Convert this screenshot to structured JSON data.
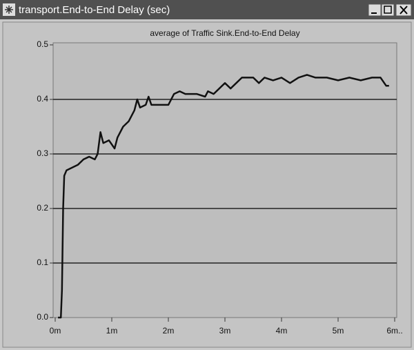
{
  "window": {
    "title": "transport.End-to-End Delay (sec)"
  },
  "chart_data": {
    "type": "line",
    "title": "average of Traffic Sink.End-to-End Delay",
    "x": [
      0.05,
      0.1,
      0.12,
      0.14,
      0.16,
      0.2,
      0.3,
      0.4,
      0.5,
      0.6,
      0.7,
      0.75,
      0.8,
      0.85,
      0.95,
      1.05,
      1.1,
      1.2,
      1.3,
      1.4,
      1.45,
      1.5,
      1.6,
      1.65,
      1.7,
      1.8,
      1.9,
      2.0,
      2.1,
      2.2,
      2.3,
      2.5,
      2.65,
      2.7,
      2.8,
      2.9,
      3.0,
      3.1,
      3.2,
      3.3,
      3.5,
      3.6,
      3.7,
      3.85,
      4.0,
      4.15,
      4.3,
      4.45,
      4.6,
      4.8,
      5.0,
      5.2,
      5.4,
      5.6,
      5.75,
      5.85,
      5.9
    ],
    "values": [
      0,
      0,
      0.05,
      0.2,
      0.26,
      0.27,
      0.275,
      0.28,
      0.29,
      0.295,
      0.29,
      0.3,
      0.34,
      0.32,
      0.325,
      0.31,
      0.33,
      0.35,
      0.36,
      0.38,
      0.4,
      0.385,
      0.39,
      0.405,
      0.39,
      0.39,
      0.39,
      0.39,
      0.41,
      0.415,
      0.41,
      0.41,
      0.405,
      0.415,
      0.41,
      0.42,
      0.43,
      0.42,
      0.43,
      0.44,
      0.44,
      0.43,
      0.44,
      0.435,
      0.44,
      0.43,
      0.44,
      0.445,
      0.44,
      0.44,
      0.435,
      0.44,
      0.435,
      0.44,
      0.44,
      0.425,
      0.425
    ],
    "color": "#111111",
    "xlim": [
      0,
      6
    ],
    "xticks": [
      {
        "value": 0,
        "label": "0m"
      },
      {
        "value": 1,
        "label": "1m"
      },
      {
        "value": 2,
        "label": "2m"
      },
      {
        "value": 3,
        "label": "3m"
      },
      {
        "value": 4,
        "label": "4m"
      },
      {
        "value": 5,
        "label": "5m"
      },
      {
        "value": 6,
        "label": "6m.."
      }
    ],
    "ylim": [
      0,
      0.5
    ],
    "yticks": [
      {
        "value": 0,
        "label": "0.0"
      },
      0.1,
      0.2,
      0.3,
      0.4,
      0.5
    ],
    "grid": true
  }
}
